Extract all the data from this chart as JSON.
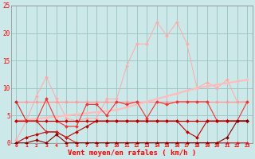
{
  "x": [
    0,
    1,
    2,
    3,
    4,
    5,
    6,
    7,
    8,
    9,
    10,
    11,
    12,
    13,
    14,
    15,
    16,
    17,
    18,
    19,
    20,
    21,
    22,
    23
  ],
  "line_spike": [
    0.5,
    4,
    8.5,
    12,
    8,
    4.5,
    4,
    4.5,
    4.5,
    8,
    8,
    14,
    18,
    18,
    22,
    19.5,
    22,
    18,
    10,
    11,
    10,
    11.5,
    7.5,
    7.5
  ],
  "line_diag1": [
    4.0,
    4.2,
    4.4,
    4.6,
    4.8,
    5.0,
    5.2,
    5.4,
    5.6,
    5.8,
    6.0,
    6.5,
    7.0,
    7.5,
    8.0,
    8.5,
    9.0,
    9.5,
    10.0,
    10.3,
    10.6,
    10.9,
    11.2,
    11.5
  ],
  "line_flat75": [
    7.5,
    7.5,
    7.5,
    7.5,
    7.5,
    7.5,
    7.5,
    7.5,
    7.5,
    7.5,
    7.5,
    7.5,
    7.5,
    7.5,
    7.5,
    7.5,
    7.5,
    7.5,
    7.5,
    7.5,
    7.5,
    7.5,
    7.5,
    7.5
  ],
  "line_zigzag": [
    4,
    4,
    4,
    8,
    4,
    3,
    3,
    7,
    7,
    5,
    7.5,
    7,
    7.5,
    4.5,
    7.5,
    7,
    7.5,
    7.5,
    7.5,
    7.5,
    4,
    4,
    4,
    7.5
  ],
  "line_flat4": [
    4,
    4,
    4,
    4,
    4,
    4,
    4,
    4,
    4,
    4,
    4,
    4,
    4,
    4,
    4,
    4,
    4,
    4,
    4,
    4,
    4,
    4,
    4,
    4
  ],
  "line_low1": [
    0,
    1,
    1.5,
    2,
    2,
    1,
    2,
    3,
    4,
    4,
    4,
    4,
    4,
    4,
    4,
    4,
    4,
    2,
    1,
    4,
    4,
    4,
    4,
    4
  ],
  "line_low2": [
    0,
    0,
    0.5,
    0,
    1.5,
    0,
    0,
    0,
    0,
    0,
    0,
    0,
    0,
    0,
    0,
    0,
    0,
    0,
    0,
    0,
    0,
    1,
    4,
    4
  ],
  "line_low3": [
    7.5,
    4,
    4,
    2,
    2,
    1,
    0,
    0,
    0,
    0,
    0,
    0,
    0,
    0,
    0,
    0,
    0,
    0,
    0,
    0,
    0,
    0,
    0,
    0
  ],
  "bg_color": "#cce8e8",
  "grid_color": "#a0c8c8",
  "col_spike": "#ffaaaa",
  "col_diag1": "#ffbbbb",
  "col_flat75": "#ff9999",
  "col_zigzag": "#ee3333",
  "col_flat4": "#cc0000",
  "col_low1": "#bb0000",
  "col_low2": "#880000",
  "col_low3": "#cc2222",
  "xlabel": "Vent moyen/en rafales ( km/h )",
  "ylim": [
    0,
    25
  ],
  "xlim_min": -0.5,
  "xlim_max": 23.5,
  "yticks": [
    0,
    5,
    10,
    15,
    20,
    25
  ],
  "xticks": [
    0,
    1,
    2,
    3,
    4,
    5,
    6,
    7,
    8,
    9,
    10,
    11,
    12,
    13,
    14,
    15,
    16,
    17,
    18,
    19,
    20,
    21,
    22,
    23
  ]
}
